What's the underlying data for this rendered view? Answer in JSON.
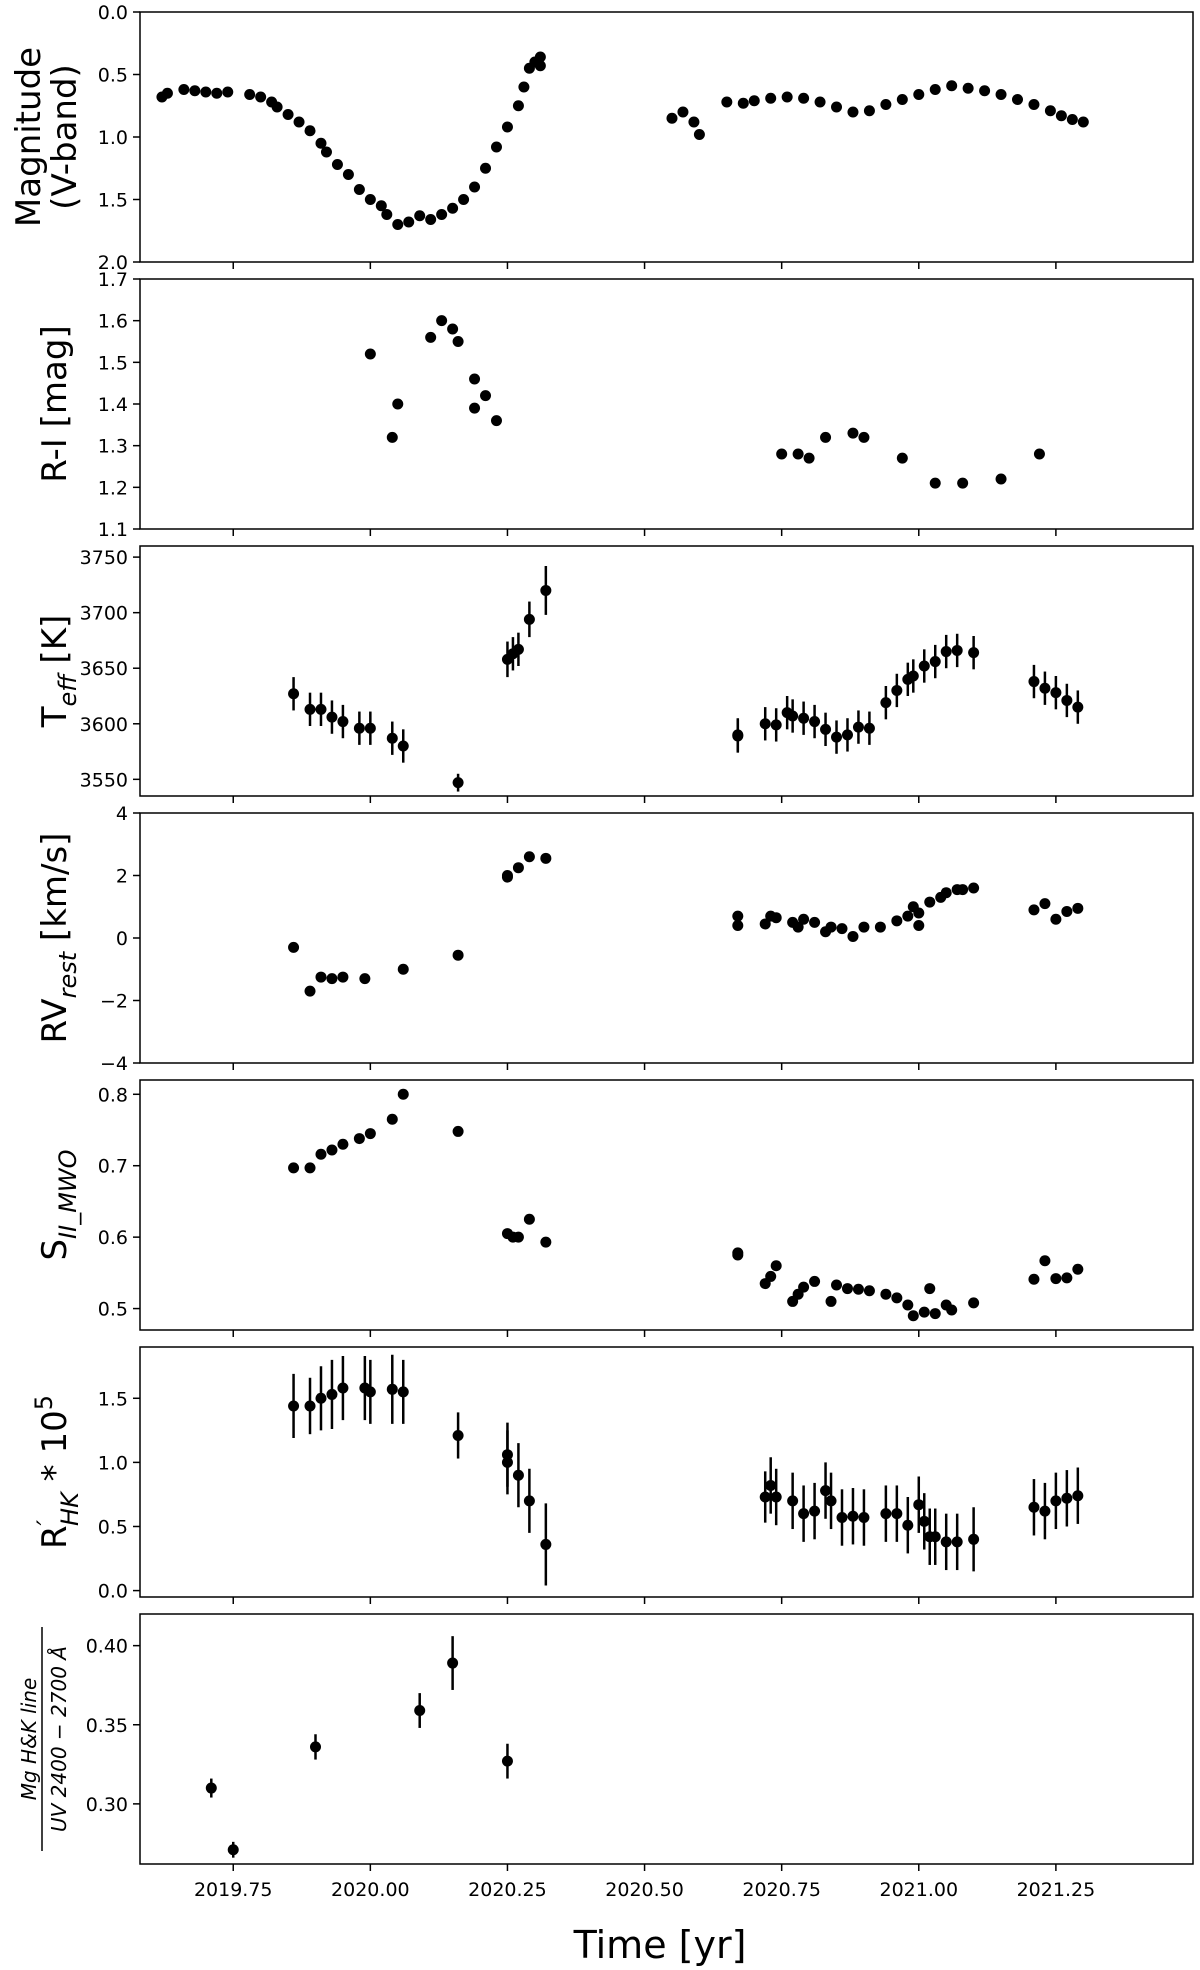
{
  "figure": {
    "xlabel": "Time [yr]",
    "x_ticks": [
      "2019.75",
      "2020.00",
      "2020.25",
      "2020.50",
      "2020.75",
      "2021.00",
      "2021.25"
    ],
    "xlim": [
      2019.58,
      2021.5
    ],
    "marker_color": "#000000"
  },
  "chart_data": [
    {
      "type": "scatter",
      "ylabel_lines": [
        "Magnitude",
        "(V-band)"
      ],
      "ylim": [
        2.0,
        0.0
      ],
      "y_inverted": true,
      "y_ticks": [
        "0.0",
        "0.5",
        "1.0",
        "1.5",
        "2.0"
      ],
      "points": [
        [
          2019.62,
          0.68
        ],
        [
          2019.63,
          0.65
        ],
        [
          2019.66,
          0.62
        ],
        [
          2019.68,
          0.63
        ],
        [
          2019.7,
          0.64
        ],
        [
          2019.72,
          0.65
        ],
        [
          2019.74,
          0.64
        ],
        [
          2019.78,
          0.66
        ],
        [
          2019.8,
          0.68
        ],
        [
          2019.82,
          0.72
        ],
        [
          2019.83,
          0.76
        ],
        [
          2019.85,
          0.82
        ],
        [
          2019.87,
          0.88
        ],
        [
          2019.89,
          0.95
        ],
        [
          2019.91,
          1.05
        ],
        [
          2019.92,
          1.12
        ],
        [
          2019.94,
          1.22
        ],
        [
          2019.96,
          1.3
        ],
        [
          2019.98,
          1.42
        ],
        [
          2020.0,
          1.5
        ],
        [
          2020.02,
          1.55
        ],
        [
          2020.03,
          1.62
        ],
        [
          2020.05,
          1.7
        ],
        [
          2020.07,
          1.68
        ],
        [
          2020.09,
          1.63
        ],
        [
          2020.11,
          1.66
        ],
        [
          2020.13,
          1.62
        ],
        [
          2020.15,
          1.57
        ],
        [
          2020.17,
          1.5
        ],
        [
          2020.19,
          1.4
        ],
        [
          2020.21,
          1.25
        ],
        [
          2020.23,
          1.08
        ],
        [
          2020.25,
          0.92
        ],
        [
          2020.27,
          0.75
        ],
        [
          2020.28,
          0.6
        ],
        [
          2020.29,
          0.45
        ],
        [
          2020.3,
          0.4
        ],
        [
          2020.31,
          0.36
        ],
        [
          2020.31,
          0.43
        ],
        [
          2020.55,
          0.85
        ],
        [
          2020.57,
          0.8
        ],
        [
          2020.59,
          0.88
        ],
        [
          2020.6,
          0.98
        ],
        [
          2020.65,
          0.72
        ],
        [
          2020.68,
          0.73
        ],
        [
          2020.7,
          0.71
        ],
        [
          2020.73,
          0.69
        ],
        [
          2020.76,
          0.68
        ],
        [
          2020.79,
          0.69
        ],
        [
          2020.82,
          0.72
        ],
        [
          2020.85,
          0.76
        ],
        [
          2020.88,
          0.8
        ],
        [
          2020.91,
          0.79
        ],
        [
          2020.94,
          0.74
        ],
        [
          2020.97,
          0.7
        ],
        [
          2021.0,
          0.66
        ],
        [
          2021.03,
          0.62
        ],
        [
          2021.06,
          0.59
        ],
        [
          2021.09,
          0.61
        ],
        [
          2021.12,
          0.63
        ],
        [
          2021.15,
          0.66
        ],
        [
          2021.18,
          0.7
        ],
        [
          2021.21,
          0.74
        ],
        [
          2021.24,
          0.79
        ],
        [
          2021.26,
          0.83
        ],
        [
          2021.28,
          0.86
        ],
        [
          2021.3,
          0.88
        ]
      ]
    },
    {
      "type": "scatter",
      "ylabel": "R-I [mag]",
      "ylim": [
        1.1,
        1.7
      ],
      "y_ticks": [
        "1.1",
        "1.2",
        "1.3",
        "1.4",
        "1.5",
        "1.6",
        "1.7"
      ],
      "points": [
        [
          2020.0,
          1.52
        ],
        [
          2020.04,
          1.32
        ],
        [
          2020.05,
          1.4
        ],
        [
          2020.11,
          1.56
        ],
        [
          2020.13,
          1.6
        ],
        [
          2020.15,
          1.58
        ],
        [
          2020.16,
          1.55
        ],
        [
          2020.19,
          1.39
        ],
        [
          2020.19,
          1.46
        ],
        [
          2020.21,
          1.42
        ],
        [
          2020.23,
          1.36
        ],
        [
          2020.75,
          1.28
        ],
        [
          2020.78,
          1.28
        ],
        [
          2020.8,
          1.27
        ],
        [
          2020.83,
          1.32
        ],
        [
          2020.88,
          1.33
        ],
        [
          2020.9,
          1.32
        ],
        [
          2020.97,
          1.27
        ],
        [
          2021.03,
          1.21
        ],
        [
          2021.08,
          1.21
        ],
        [
          2021.15,
          1.22
        ],
        [
          2021.22,
          1.28
        ]
      ],
      "errors": [
        0.01,
        0.008,
        0.012,
        0.006,
        0.006,
        0.006,
        0.006,
        0.006,
        0.006,
        0.006,
        0.006,
        0.005,
        0.005,
        0.005,
        0.005,
        0.005,
        0.005,
        0.005,
        0.005,
        0.005,
        0.005,
        0.005
      ]
    },
    {
      "type": "scatter",
      "ylabel_main": "T",
      "ylabel_sub": "eff",
      "ylabel_tail": " [K]",
      "ylim": [
        3535,
        3760
      ],
      "y_ticks": [
        "3550",
        "3600",
        "3650",
        "3700",
        "3750"
      ],
      "points": [
        [
          2019.86,
          3627
        ],
        [
          2019.89,
          3613
        ],
        [
          2019.91,
          3613
        ],
        [
          2019.93,
          3606
        ],
        [
          2019.95,
          3602
        ],
        [
          2019.98,
          3596
        ],
        [
          2020.0,
          3596
        ],
        [
          2020.04,
          3587
        ],
        [
          2020.06,
          3580
        ],
        [
          2020.16,
          3547
        ],
        [
          2020.25,
          3658
        ],
        [
          2020.26,
          3663
        ],
        [
          2020.27,
          3667
        ],
        [
          2020.29,
          3694
        ],
        [
          2020.32,
          3720
        ],
        [
          2020.67,
          3589
        ],
        [
          2020.67,
          3590
        ],
        [
          2020.72,
          3600
        ],
        [
          2020.74,
          3599
        ],
        [
          2020.76,
          3610
        ],
        [
          2020.77,
          3607
        ],
        [
          2020.79,
          3605
        ],
        [
          2020.81,
          3602
        ],
        [
          2020.83,
          3595
        ],
        [
          2020.85,
          3588
        ],
        [
          2020.87,
          3590
        ],
        [
          2020.89,
          3597
        ],
        [
          2020.91,
          3596
        ],
        [
          2020.94,
          3619
        ],
        [
          2020.96,
          3630
        ],
        [
          2020.98,
          3640
        ],
        [
          2020.99,
          3643
        ],
        [
          2021.01,
          3652
        ],
        [
          2021.03,
          3656
        ],
        [
          2021.05,
          3665
        ],
        [
          2021.07,
          3666
        ],
        [
          2021.1,
          3664
        ],
        [
          2021.21,
          3638
        ],
        [
          2021.23,
          3632
        ],
        [
          2021.25,
          3628
        ],
        [
          2021.27,
          3621
        ],
        [
          2021.29,
          3615
        ]
      ],
      "errors": [
        15,
        15,
        15,
        15,
        15,
        15,
        15,
        15,
        15,
        8,
        16,
        15,
        15,
        16,
        22,
        15,
        15,
        15,
        15,
        15,
        15,
        15,
        15,
        15,
        15,
        15,
        15,
        15,
        15,
        15,
        15,
        15,
        15,
        15,
        15,
        15,
        15,
        15,
        15,
        15,
        15,
        15
      ]
    },
    {
      "type": "scatter",
      "ylabel_main": "RV",
      "ylabel_sub": "rest",
      "ylabel_tail": " [km/s]",
      "ylim": [
        -4,
        4
      ],
      "y_ticks": [
        "−4",
        "−2",
        "0",
        "2",
        "4"
      ],
      "points": [
        [
          2019.86,
          -0.3
        ],
        [
          2019.89,
          -1.7
        ],
        [
          2019.91,
          -1.25
        ],
        [
          2019.93,
          -1.3
        ],
        [
          2019.95,
          -1.25
        ],
        [
          2019.99,
          -1.3
        ],
        [
          2020.06,
          -1.0
        ],
        [
          2020.16,
          -0.55
        ],
        [
          2020.25,
          1.95
        ],
        [
          2020.25,
          2.0
        ],
        [
          2020.27,
          2.25
        ],
        [
          2020.29,
          2.6
        ],
        [
          2020.32,
          2.55
        ],
        [
          2020.67,
          0.7
        ],
        [
          2020.67,
          0.4
        ],
        [
          2020.72,
          0.45
        ],
        [
          2020.73,
          0.7
        ],
        [
          2020.74,
          0.65
        ],
        [
          2020.77,
          0.5
        ],
        [
          2020.78,
          0.35
        ],
        [
          2020.79,
          0.6
        ],
        [
          2020.81,
          0.5
        ],
        [
          2020.83,
          0.2
        ],
        [
          2020.84,
          0.35
        ],
        [
          2020.86,
          0.3
        ],
        [
          2020.88,
          0.05
        ],
        [
          2020.9,
          0.35
        ],
        [
          2020.93,
          0.35
        ],
        [
          2020.96,
          0.55
        ],
        [
          2020.98,
          0.7
        ],
        [
          2020.99,
          1.0
        ],
        [
          2021.0,
          0.8
        ],
        [
          2021.0,
          0.4
        ],
        [
          2021.02,
          1.15
        ],
        [
          2021.04,
          1.3
        ],
        [
          2021.05,
          1.45
        ],
        [
          2021.07,
          1.55
        ],
        [
          2021.08,
          1.55
        ],
        [
          2021.1,
          1.6
        ],
        [
          2021.21,
          0.9
        ],
        [
          2021.23,
          1.1
        ],
        [
          2021.25,
          0.6
        ],
        [
          2021.27,
          0.85
        ],
        [
          2021.29,
          0.95
        ]
      ],
      "errors": [
        0.12,
        0.1,
        0.1,
        0.1,
        0.1,
        0.1,
        0.15,
        0.1,
        0.12,
        0.1,
        0.1,
        0.1,
        0.1,
        0.1,
        0.1,
        0.1,
        0.1,
        0.1,
        0.1,
        0.1,
        0.1,
        0.1,
        0.1,
        0.1,
        0.1,
        0.1,
        0.1,
        0.1,
        0.1,
        0.1,
        0.1,
        0.1,
        0.1,
        0.1,
        0.1,
        0.1,
        0.1,
        0.1,
        0.1,
        0.1,
        0.1,
        0.1,
        0.1,
        0.1
      ]
    },
    {
      "type": "scatter",
      "ylabel_main": "S",
      "ylabel_sub": "II_MWO",
      "ylim": [
        0.47,
        0.82
      ],
      "y_ticks": [
        "0.5",
        "0.6",
        "0.7",
        "0.8"
      ],
      "points": [
        [
          2019.86,
          0.697
        ],
        [
          2019.89,
          0.697
        ],
        [
          2019.91,
          0.716
        ],
        [
          2019.93,
          0.722
        ],
        [
          2019.95,
          0.73
        ],
        [
          2019.98,
          0.738
        ],
        [
          2020.0,
          0.745
        ],
        [
          2020.04,
          0.765
        ],
        [
          2020.06,
          0.8
        ],
        [
          2020.16,
          0.748
        ],
        [
          2020.25,
          0.605
        ],
        [
          2020.26,
          0.6
        ],
        [
          2020.27,
          0.6
        ],
        [
          2020.29,
          0.625
        ],
        [
          2020.32,
          0.593
        ],
        [
          2020.67,
          0.578
        ],
        [
          2020.67,
          0.575
        ],
        [
          2020.72,
          0.535
        ],
        [
          2020.73,
          0.545
        ],
        [
          2020.74,
          0.56
        ],
        [
          2020.77,
          0.51
        ],
        [
          2020.78,
          0.52
        ],
        [
          2020.79,
          0.53
        ],
        [
          2020.81,
          0.538
        ],
        [
          2020.84,
          0.51
        ],
        [
          2020.85,
          0.533
        ],
        [
          2020.87,
          0.528
        ],
        [
          2020.89,
          0.527
        ],
        [
          2020.91,
          0.525
        ],
        [
          2020.94,
          0.52
        ],
        [
          2020.96,
          0.515
        ],
        [
          2020.98,
          0.505
        ],
        [
          2020.99,
          0.49
        ],
        [
          2021.01,
          0.495
        ],
        [
          2021.02,
          0.528
        ],
        [
          2021.03,
          0.493
        ],
        [
          2021.05,
          0.505
        ],
        [
          2021.06,
          0.498
        ],
        [
          2021.1,
          0.508
        ],
        [
          2021.21,
          0.541
        ],
        [
          2021.23,
          0.567
        ],
        [
          2021.25,
          0.542
        ],
        [
          2021.27,
          0.543
        ],
        [
          2021.29,
          0.555
        ]
      ]
    },
    {
      "type": "scatter",
      "ylabel_main": "R",
      "ylabel_sup": "′",
      "ylabel_sub": "HK",
      "ylabel_tail": " * 10",
      "ylabel_exp": "5",
      "ylim": [
        -0.05,
        1.9
      ],
      "y_ticks": [
        "0.0",
        "0.5",
        "1.0",
        "1.5"
      ],
      "points": [
        [
          2019.86,
          1.44
        ],
        [
          2019.89,
          1.44
        ],
        [
          2019.91,
          1.5
        ],
        [
          2019.93,
          1.53
        ],
        [
          2019.95,
          1.58
        ],
        [
          2019.99,
          1.58
        ],
        [
          2020.0,
          1.55
        ],
        [
          2020.04,
          1.57
        ],
        [
          2020.06,
          1.55
        ],
        [
          2020.16,
          1.21
        ],
        [
          2020.25,
          1.06
        ],
        [
          2020.25,
          1.0
        ],
        [
          2020.27,
          0.9
        ],
        [
          2020.29,
          0.7
        ],
        [
          2020.32,
          0.36
        ],
        [
          2020.72,
          0.73
        ],
        [
          2020.73,
          0.82
        ],
        [
          2020.74,
          0.73
        ],
        [
          2020.77,
          0.7
        ],
        [
          2020.79,
          0.6
        ],
        [
          2020.81,
          0.62
        ],
        [
          2020.83,
          0.78
        ],
        [
          2020.84,
          0.7
        ],
        [
          2020.86,
          0.57
        ],
        [
          2020.88,
          0.58
        ],
        [
          2020.9,
          0.57
        ],
        [
          2020.94,
          0.6
        ],
        [
          2020.96,
          0.6
        ],
        [
          2020.98,
          0.51
        ],
        [
          2021.0,
          0.67
        ],
        [
          2021.01,
          0.54
        ],
        [
          2021.02,
          0.42
        ],
        [
          2021.03,
          0.42
        ],
        [
          2021.05,
          0.38
        ],
        [
          2021.07,
          0.38
        ],
        [
          2021.1,
          0.4
        ],
        [
          2021.21,
          0.65
        ],
        [
          2021.23,
          0.62
        ],
        [
          2021.25,
          0.7
        ],
        [
          2021.27,
          0.72
        ],
        [
          2021.29,
          0.74
        ]
      ],
      "errors": [
        0.25,
        0.22,
        0.25,
        0.27,
        0.25,
        0.25,
        0.25,
        0.27,
        0.25,
        0.18,
        0.25,
        0.25,
        0.25,
        0.25,
        0.32,
        0.2,
        0.22,
        0.22,
        0.22,
        0.22,
        0.22,
        0.22,
        0.22,
        0.22,
        0.22,
        0.22,
        0.22,
        0.22,
        0.22,
        0.22,
        0.22,
        0.22,
        0.22,
        0.22,
        0.22,
        0.25,
        0.22,
        0.22,
        0.22,
        0.22,
        0.22
      ]
    },
    {
      "type": "scatter",
      "ylabel_numerator": "Mg H&K line",
      "ylabel_denominator": "UV 2400 − 2700 Å",
      "ylim": [
        0.262,
        0.42
      ],
      "y_ticks": [
        "0.30",
        "0.35",
        "0.40"
      ],
      "points": [
        [
          2019.71,
          0.31
        ],
        [
          2019.75,
          0.271
        ],
        [
          2019.9,
          0.336
        ],
        [
          2020.09,
          0.359
        ],
        [
          2020.15,
          0.389
        ],
        [
          2020.25,
          0.327
        ]
      ],
      "errors": [
        0.006,
        0.005,
        0.008,
        0.011,
        0.017,
        0.011
      ]
    }
  ]
}
